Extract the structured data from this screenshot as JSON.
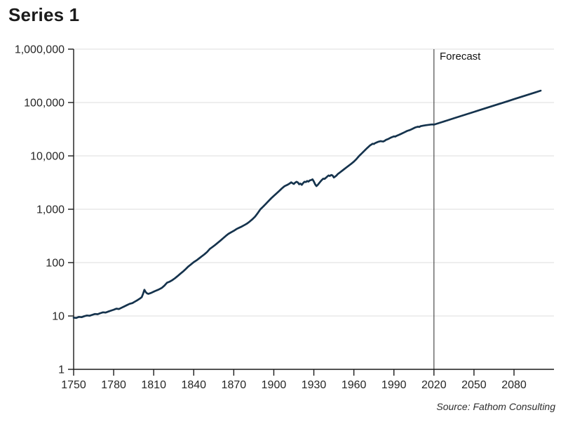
{
  "title": "Series 1",
  "forecast_label": "Forecast",
  "source_note": "Source: Fathom Consulting",
  "colors": {
    "line": "#15334d",
    "axis": "#1a1a1a",
    "gridline": "#dddddd",
    "forecast_line": "#4a4a4a",
    "tick_text": "#262626"
  },
  "chart_data": {
    "type": "line",
    "title": "Series 1",
    "grid": "horizontal-on",
    "legend": "none",
    "x_axis": {
      "label": "",
      "ticks": [
        1750,
        1780,
        1810,
        1840,
        1870,
        1900,
        1930,
        1960,
        1990,
        2020,
        2050,
        2080
      ],
      "range": [
        1750,
        2110
      ]
    },
    "y_axis": {
      "label": "",
      "scale": "log",
      "ticks": [
        1,
        10,
        100,
        1000,
        10000,
        100000,
        1000000
      ],
      "tick_labels": [
        "1",
        "10",
        "100",
        "1,000",
        "10,000",
        "100,000",
        "1,000,000"
      ],
      "range": [
        1,
        1000000
      ]
    },
    "annotations": {
      "forecast_start_year": 2020,
      "forecast_label": "Forecast"
    },
    "series": [
      {
        "name": "Series 1",
        "points": [
          [
            1750,
            9.3
          ],
          [
            1752,
            9.2
          ],
          [
            1754,
            9.6
          ],
          [
            1756,
            9.5
          ],
          [
            1758,
            9.9
          ],
          [
            1760,
            10.2
          ],
          [
            1762,
            10.1
          ],
          [
            1764,
            10.5
          ],
          [
            1766,
            10.9
          ],
          [
            1768,
            10.8
          ],
          [
            1770,
            11.3
          ],
          [
            1772,
            11.7
          ],
          [
            1774,
            11.6
          ],
          [
            1776,
            12.1
          ],
          [
            1778,
            12.6
          ],
          [
            1780,
            13.1
          ],
          [
            1782,
            13.7
          ],
          [
            1784,
            13.5
          ],
          [
            1786,
            14.3
          ],
          [
            1788,
            15.1
          ],
          [
            1790,
            16.0
          ],
          [
            1792,
            16.9
          ],
          [
            1794,
            17.4
          ],
          [
            1796,
            18.6
          ],
          [
            1798,
            19.9
          ],
          [
            1800,
            21.5
          ],
          [
            1801,
            22.5
          ],
          [
            1802,
            26
          ],
          [
            1803,
            31
          ],
          [
            1804,
            28
          ],
          [
            1805,
            26.5
          ],
          [
            1806,
            26
          ],
          [
            1808,
            27
          ],
          [
            1810,
            28.5
          ],
          [
            1812,
            30
          ],
          [
            1814,
            31.5
          ],
          [
            1816,
            33.5
          ],
          [
            1818,
            37
          ],
          [
            1820,
            42
          ],
          [
            1822,
            44
          ],
          [
            1824,
            47
          ],
          [
            1826,
            51
          ],
          [
            1828,
            56
          ],
          [
            1830,
            62
          ],
          [
            1832,
            68
          ],
          [
            1834,
            76
          ],
          [
            1836,
            85
          ],
          [
            1838,
            93
          ],
          [
            1840,
            102
          ],
          [
            1842,
            110
          ],
          [
            1844,
            120
          ],
          [
            1846,
            131
          ],
          [
            1848,
            143
          ],
          [
            1850,
            158
          ],
          [
            1852,
            180
          ],
          [
            1854,
            196
          ],
          [
            1856,
            214
          ],
          [
            1858,
            235
          ],
          [
            1860,
            258
          ],
          [
            1862,
            285
          ],
          [
            1864,
            315
          ],
          [
            1866,
            345
          ],
          [
            1868,
            370
          ],
          [
            1870,
            395
          ],
          [
            1872,
            425
          ],
          [
            1874,
            450
          ],
          [
            1876,
            475
          ],
          [
            1878,
            505
          ],
          [
            1880,
            540
          ],
          [
            1882,
            590
          ],
          [
            1884,
            650
          ],
          [
            1886,
            730
          ],
          [
            1888,
            850
          ],
          [
            1890,
            1000
          ],
          [
            1892,
            1120
          ],
          [
            1894,
            1260
          ],
          [
            1896,
            1420
          ],
          [
            1898,
            1600
          ],
          [
            1900,
            1780
          ],
          [
            1902,
            1980
          ],
          [
            1904,
            2200
          ],
          [
            1906,
            2450
          ],
          [
            1908,
            2700
          ],
          [
            1910,
            2850
          ],
          [
            1912,
            3050
          ],
          [
            1913,
            3200
          ],
          [
            1914,
            3080
          ],
          [
            1915,
            2980
          ],
          [
            1916,
            3150
          ],
          [
            1917,
            3270
          ],
          [
            1918,
            3180
          ],
          [
            1919,
            2940
          ],
          [
            1920,
            3020
          ],
          [
            1921,
            2870
          ],
          [
            1922,
            3100
          ],
          [
            1923,
            3280
          ],
          [
            1924,
            3230
          ],
          [
            1925,
            3380
          ],
          [
            1926,
            3300
          ],
          [
            1927,
            3470
          ],
          [
            1928,
            3530
          ],
          [
            1929,
            3630
          ],
          [
            1930,
            3320
          ],
          [
            1931,
            2930
          ],
          [
            1932,
            2720
          ],
          [
            1933,
            2870
          ],
          [
            1934,
            3100
          ],
          [
            1935,
            3320
          ],
          [
            1936,
            3550
          ],
          [
            1937,
            3740
          ],
          [
            1938,
            3700
          ],
          [
            1939,
            3890
          ],
          [
            1940,
            4090
          ],
          [
            1941,
            4290
          ],
          [
            1942,
            4200
          ],
          [
            1943,
            4390
          ],
          [
            1944,
            4300
          ],
          [
            1945,
            3930
          ],
          [
            1946,
            4100
          ],
          [
            1947,
            4300
          ],
          [
            1948,
            4580
          ],
          [
            1950,
            5000
          ],
          [
            1952,
            5450
          ],
          [
            1954,
            5950
          ],
          [
            1956,
            6500
          ],
          [
            1958,
            7100
          ],
          [
            1960,
            7800
          ],
          [
            1962,
            8750
          ],
          [
            1964,
            10000
          ],
          [
            1966,
            11200
          ],
          [
            1968,
            12600
          ],
          [
            1970,
            14100
          ],
          [
            1972,
            15600
          ],
          [
            1974,
            16900
          ],
          [
            1975,
            16700
          ],
          [
            1976,
            17400
          ],
          [
            1978,
            18300
          ],
          [
            1980,
            18900
          ],
          [
            1981,
            18700
          ],
          [
            1982,
            18600
          ],
          [
            1983,
            19100
          ],
          [
            1984,
            19900
          ],
          [
            1986,
            20900
          ],
          [
            1988,
            22200
          ],
          [
            1990,
            23200
          ],
          [
            1991,
            23000
          ],
          [
            1992,
            23700
          ],
          [
            1994,
            24900
          ],
          [
            1996,
            26300
          ],
          [
            1998,
            27800
          ],
          [
            2000,
            29400
          ],
          [
            2002,
            30500
          ],
          [
            2004,
            32200
          ],
          [
            2006,
            34100
          ],
          [
            2008,
            35300
          ],
          [
            2009,
            34800
          ],
          [
            2010,
            36000
          ],
          [
            2012,
            36900
          ],
          [
            2014,
            37600
          ],
          [
            2016,
            38200
          ],
          [
            2018,
            38700
          ],
          [
            2019,
            38900
          ],
          [
            2020,
            38500
          ],
          [
            2025,
            42200
          ],
          [
            2030,
            46200
          ],
          [
            2035,
            50700
          ],
          [
            2040,
            55500
          ],
          [
            2045,
            60800
          ],
          [
            2050,
            66700
          ],
          [
            2055,
            73100
          ],
          [
            2060,
            80100
          ],
          [
            2065,
            87800
          ],
          [
            2070,
            96200
          ],
          [
            2075,
            105400
          ],
          [
            2080,
            115500
          ],
          [
            2085,
            126600
          ],
          [
            2090,
            138800
          ],
          [
            2095,
            152100
          ],
          [
            2100,
            166700
          ]
        ]
      }
    ]
  }
}
